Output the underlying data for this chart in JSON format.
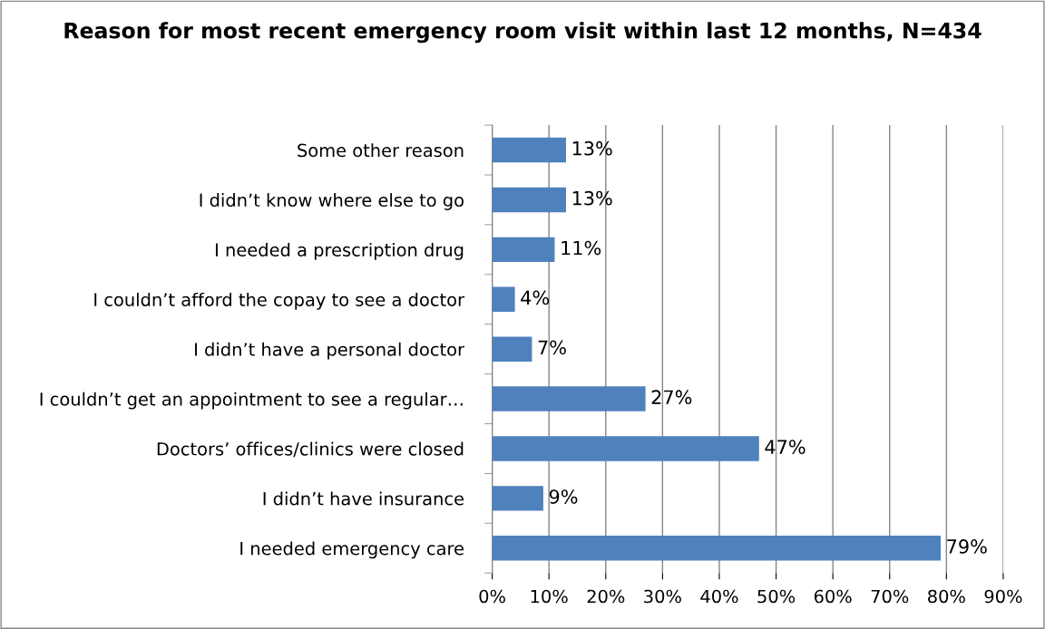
{
  "chart_data": {
    "type": "bar",
    "orientation": "horizontal",
    "title": "Reason for most recent emergency room visit within last 12 months, N=434",
    "categories": [
      "Some other reason",
      "I didn’t know where else to go",
      "I needed a prescription drug",
      "I couldn’t afford the copay to see a doctor",
      "I didn’t have a personal doctor",
      "I couldn’t get an appointment to see a regular…",
      "Doctors’ offices/clinics were closed",
      "I didn’t have insurance",
      "I needed emergency care"
    ],
    "values": [
      13,
      13,
      11,
      4,
      7,
      27,
      47,
      9,
      79
    ],
    "value_labels": [
      "13%",
      "13%",
      "11%",
      "4%",
      "7%",
      "27%",
      "47%",
      "9%",
      "79%"
    ],
    "color": "#4f81bd",
    "xlim": [
      0,
      90
    ],
    "xticks": [
      {
        "value": 0,
        "label": "0%"
      },
      {
        "value": 10,
        "label": "10%"
      },
      {
        "value": 20,
        "label": "20%"
      },
      {
        "value": 30,
        "label": "30%"
      },
      {
        "value": 40,
        "label": "40%"
      },
      {
        "value": 50,
        "label": "50%"
      },
      {
        "value": 60,
        "label": "60%"
      },
      {
        "value": 70,
        "label": "70%"
      },
      {
        "value": 80,
        "label": "80%"
      },
      {
        "value": 90,
        "label": "90%"
      }
    ],
    "grid": "x",
    "legend": false
  }
}
